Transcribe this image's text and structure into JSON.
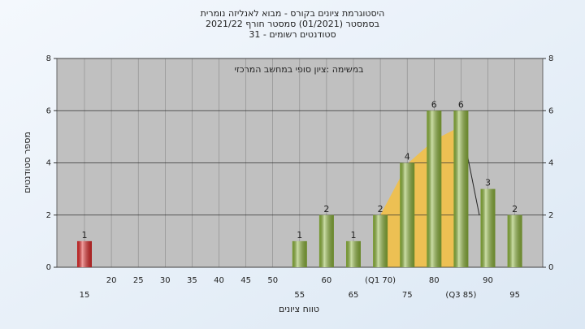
{
  "chart_data": {
    "type": "bar",
    "title": "היסטוגרמת ציונים בקורס - מבוא לאנליזה נומרית",
    "subtitle": "בסמסטר  (01/2021)  סמסטר חורף 2021/22",
    "subtitle2": "סטודנטים רשומים - 31",
    "annotation": "במשימה :ציון סופי במחשב המרכזי",
    "x_label": "טווח ציונים",
    "y_label": "מספר סטודנטים",
    "categories": [
      "15",
      "20",
      "25",
      "30",
      "35",
      "40",
      "45",
      "50",
      "55",
      "60",
      "65",
      "(Q1 70)",
      "75",
      "80",
      "(Q3 85)",
      "90",
      "95"
    ],
    "values": [
      1,
      0,
      0,
      0,
      0,
      0,
      0,
      0,
      1,
      2,
      1,
      2,
      4,
      6,
      6,
      3,
      2
    ],
    "colors": [
      "#e02828",
      "#8db53a",
      "#8db53a",
      "#8db53a",
      "#8db53a",
      "#8db53a",
      "#8db53a",
      "#8db53a",
      "#8db53a",
      "#8db53a",
      "#8db53a",
      "#8db53a",
      "#8db53a",
      "#8db53a",
      "#8db53a",
      "#8db53a",
      "#8db53a"
    ],
    "ylim": [
      0,
      8
    ],
    "yticks": [
      0,
      2,
      4,
      6,
      8
    ],
    "y2lim": [
      0,
      8
    ],
    "y2ticks": [
      0,
      2,
      4,
      6,
      8
    ],
    "grid": true
  }
}
